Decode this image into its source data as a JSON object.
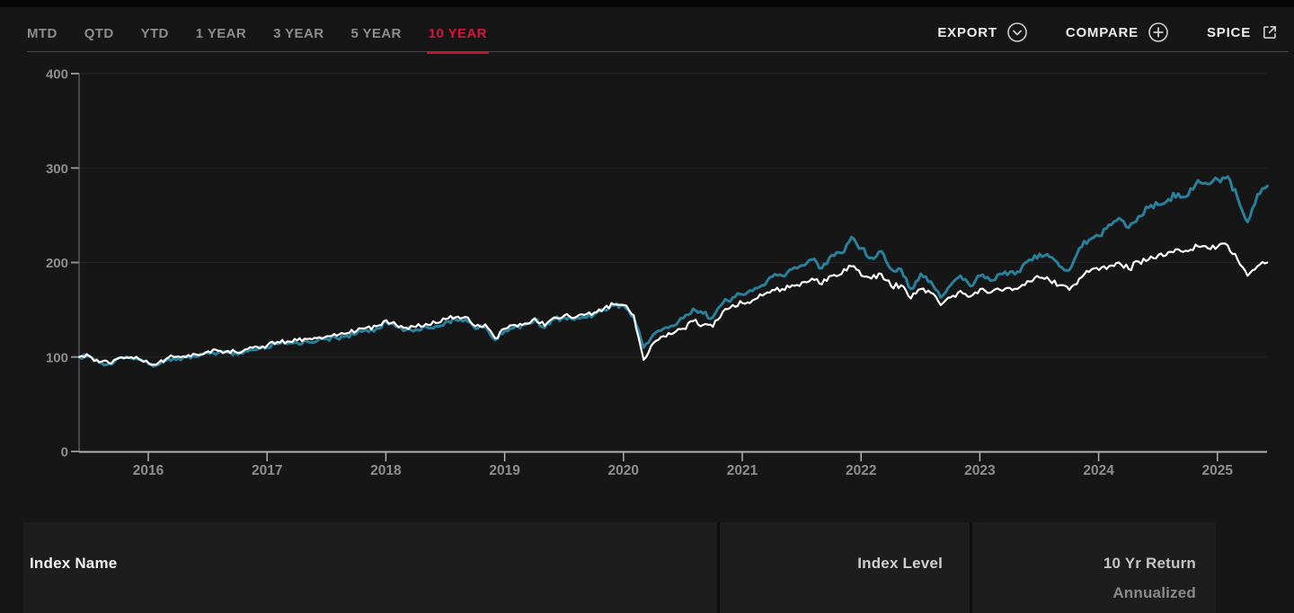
{
  "header": {
    "tabs": [
      {
        "label": "MTD",
        "active": false
      },
      {
        "label": "QTD",
        "active": false
      },
      {
        "label": "YTD",
        "active": false
      },
      {
        "label": "1 YEAR",
        "active": false
      },
      {
        "label": "3 YEAR",
        "active": false
      },
      {
        "label": "5 YEAR",
        "active": false
      },
      {
        "label": "10 YEAR",
        "active": true
      }
    ],
    "actions": [
      {
        "label": "EXPORT",
        "icon": "chevron-down-circle-icon"
      },
      {
        "label": "COMPARE",
        "icon": "plus-circle-icon"
      },
      {
        "label": "SPICE",
        "icon": "external-link-icon"
      }
    ]
  },
  "colors": {
    "accent_red": "#d3163c",
    "active_underline": "#c01433",
    "series_teal": "#2a7f9b",
    "series_white": "#ffffff",
    "page_bg": "#161616",
    "panel_bg": "#1d1d1d",
    "x_axis": "#b0b0b0",
    "y_axis": "#565656",
    "gridline": "#252525",
    "muted_text": "#8e8e8e"
  },
  "chart_data": {
    "type": "line",
    "title": "",
    "xlabel": "",
    "ylabel": "",
    "x_start": 2015.42,
    "x_step": 0.0833333,
    "x_unit": "year",
    "xticks": [
      2016,
      2017,
      2018,
      2019,
      2020,
      2021,
      2022,
      2023,
      2024,
      2025
    ],
    "ylim": [
      0,
      400
    ],
    "yticks": [
      0,
      100,
      200,
      300,
      400
    ],
    "grid": "horizontal-faint",
    "legend": "none",
    "series": [
      {
        "name": "teal-line",
        "color": "#2a7f9b",
        "values": [
          100,
          101,
          94,
          93,
          99,
          99.5,
          97.5,
          92.5,
          92,
          98,
          98.5,
          100,
          100.5,
          104,
          104.5,
          104.5,
          102.5,
          106,
          108,
          110,
          114,
          114,
          115,
          116.5,
          117,
          119.5,
          120,
          122.5,
          125,
          128.5,
          130,
          137,
          132,
          128.5,
          129,
          132,
          132.5,
          137,
          139.5,
          140,
          130,
          132,
          118,
          128,
          132,
          134,
          139.5,
          131,
          140,
          142,
          139.5,
          142,
          145,
          150,
          154.5,
          154,
          142,
          110,
          124,
          130,
          133,
          141,
          151,
          146,
          142,
          157,
          163,
          166,
          170,
          176,
          185,
          186,
          193,
          197,
          203,
          194,
          208,
          210,
          227,
          215,
          205,
          212,
          193,
          193,
          172,
          188,
          180,
          163,
          176,
          186,
          175,
          186,
          181,
          188,
          190,
          190,
          203,
          209,
          206,
          196,
          192,
          215,
          224,
          228,
          240,
          247,
          237,
          249,
          258,
          261,
          267,
          273,
          271,
          287,
          283,
          288,
          291,
          268,
          243,
          272,
          281
        ]
      },
      {
        "name": "white-line",
        "color": "#ffffff",
        "values": [
          100,
          101,
          94.5,
          93.5,
          99,
          99,
          98,
          93.5,
          94,
          99.5,
          100.5,
          102,
          102,
          106,
          106.5,
          106.5,
          104.5,
          108.5,
          110.5,
          112.5,
          116,
          116.5,
          117.5,
          119,
          120,
          122,
          122.5,
          125,
          127.5,
          131,
          132.5,
          139,
          134,
          131,
          132,
          135,
          136,
          140,
          142,
          142.5,
          132.5,
          134.5,
          120,
          130,
          134,
          135.5,
          141,
          133,
          142,
          144,
          141.5,
          144.5,
          147,
          151.5,
          155.5,
          155,
          144,
          97,
          115,
          122,
          125,
          130,
          138,
          134,
          132,
          148,
          155,
          157,
          160,
          165,
          171,
          172,
          176,
          179,
          183,
          177,
          186,
          188,
          196,
          186,
          183,
          188,
          175,
          176,
          162,
          172,
          168,
          155,
          163,
          170,
          164,
          172,
          168,
          171,
          173,
          174,
          180,
          184,
          181,
          176,
          171,
          183,
          190,
          192,
          196,
          200,
          193,
          201,
          203,
          208,
          211,
          214,
          212,
          217,
          215,
          217,
          218,
          203,
          186,
          196,
          200
        ]
      }
    ]
  },
  "table": {
    "columns": [
      {
        "label": "Index Name"
      },
      {
        "label": "Index Level"
      },
      {
        "label": "10 Yr Return",
        "sublabel": "Annualized"
      }
    ]
  }
}
